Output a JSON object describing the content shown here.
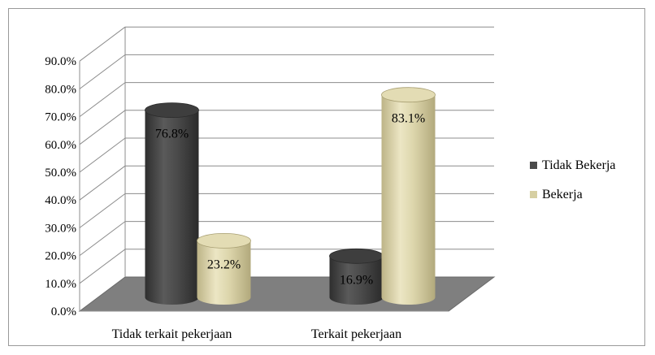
{
  "chart_data": {
    "type": "bar",
    "style": "3d-cylinder",
    "title": "",
    "xlabel": "",
    "ylabel": "",
    "categories": [
      "Tidak terkait pekerjaan",
      "Terkait pekerjaan"
    ],
    "series": [
      {
        "name": "Tidak Bekerja",
        "values": [
          76.8,
          16.9
        ],
        "labels": [
          "76.8%",
          "16.9%"
        ],
        "color": "#4a4a4a"
      },
      {
        "name": "Bekerja",
        "values": [
          23.2,
          83.1
        ],
        "labels": [
          "23.2%",
          "83.1%"
        ],
        "color": "#d6cfa2"
      }
    ],
    "ylim": [
      0,
      90
    ],
    "yticks": [
      0,
      10,
      20,
      30,
      40,
      50,
      60,
      70,
      80,
      90
    ],
    "ytick_labels": [
      "0.0%",
      "10.0%",
      "20.0%",
      "30.0%",
      "40.0%",
      "50.0%",
      "60.0%",
      "70.0%",
      "80.0%",
      "90.0%"
    ],
    "grid": true,
    "legend_position": "right",
    "floor_color": "#7f7f7f"
  }
}
